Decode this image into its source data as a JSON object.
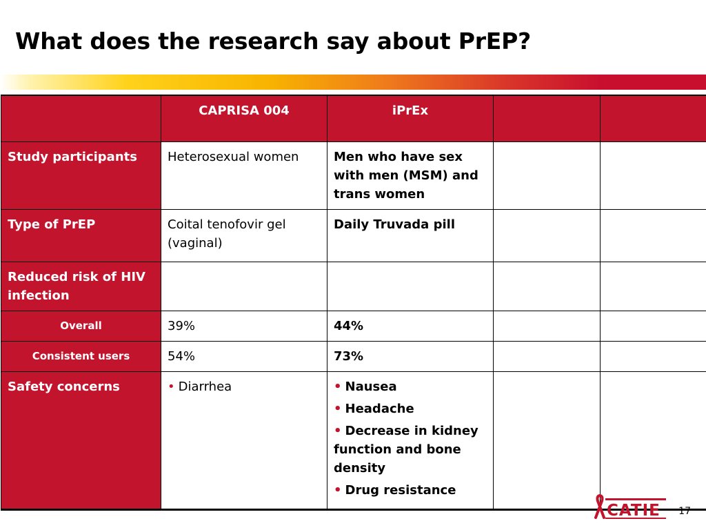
{
  "title": "What does the research say about PrEP?",
  "columns": [
    "",
    "CAPRISA 004",
    "iPrEx",
    "",
    ""
  ],
  "rows": {
    "participants": {
      "label": "Study participants",
      "caprisa": "Heterosexual women",
      "iprex": "Men who have sex with men (MSM) and trans women"
    },
    "type": {
      "label": "Type of PrEP",
      "caprisa": "Coital tenofovir gel (vaginal)",
      "iprex": "Daily Truvada pill"
    },
    "risk": {
      "label": "Reduced risk of HIV infection"
    },
    "overall": {
      "label": "Overall",
      "caprisa": "39%",
      "iprex": "44%"
    },
    "consistent": {
      "label": "Consistent users",
      "caprisa": "54%",
      "iprex": "73%"
    },
    "safety": {
      "label": "Safety concerns",
      "caprisa": [
        "Diarrhea"
      ],
      "iprex": [
        "Nausea",
        "Headache",
        "Decrease in kidney function and bone density",
        "Drug resistance"
      ]
    }
  },
  "logo": {
    "text": "CATIE",
    "icon": "red-ribbon-icon"
  },
  "page_number": "17",
  "colors": {
    "accent_red": "#c3142d",
    "bar_yellow": "#ffd21a",
    "bar_orange": "#ef7a1c"
  }
}
